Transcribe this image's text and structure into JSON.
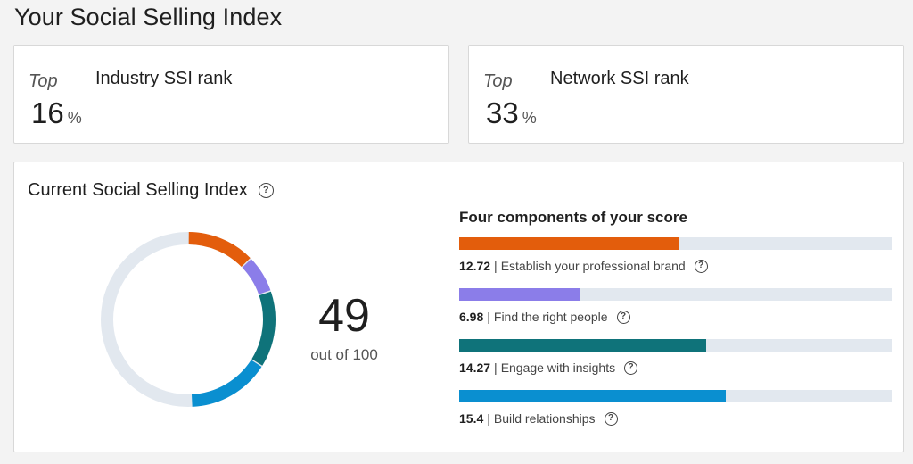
{
  "page": {
    "title": "Your Social Selling Index"
  },
  "ranks": [
    {
      "top_label": "Top",
      "value": "16",
      "unit": "%",
      "label": "Industry SSI rank"
    },
    {
      "top_label": "Top",
      "value": "33",
      "unit": "%",
      "label": "Network SSI rank"
    }
  ],
  "ssi": {
    "title": "Current Social Selling Index",
    "help_icon": "question-circle-icon",
    "score": "49",
    "out_of": "out of 100",
    "max": 100,
    "track_color": "#e2e8ef",
    "components_title": "Four components of your score",
    "separator": "|",
    "component_max": 25,
    "components": [
      {
        "score": "12.72",
        "value": 12.72,
        "label": "Establish your professional brand",
        "color": "#e35d0c"
      },
      {
        "score": "6.98",
        "value": 6.98,
        "label": "Find the right people",
        "color": "#8b7de9"
      },
      {
        "score": "14.27",
        "value": 14.27,
        "label": "Engage with insights",
        "color": "#0f737a"
      },
      {
        "score": "15.4",
        "value": 15.4,
        "label": "Build relationships",
        "color": "#0a8fd0"
      }
    ]
  }
}
